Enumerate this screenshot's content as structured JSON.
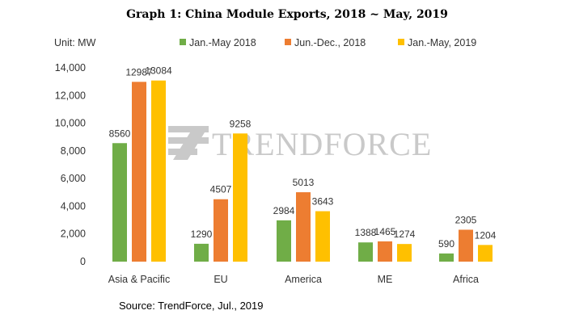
{
  "chart_data": {
    "type": "bar",
    "title": "Graph 1: China Module Exports, 2018 ~ May, 2019",
    "unit_label": "Unit:  MW",
    "categories": [
      "Asia & Pacific",
      "EU",
      "America",
      "ME",
      "Africa"
    ],
    "series": [
      {
        "name": "Jan.-May 2018",
        "color": "#70ad47",
        "values": [
          8560,
          1290,
          2984,
          1388,
          590
        ]
      },
      {
        "name": "Jun.-Dec., 2018",
        "color": "#ed7d31",
        "values": [
          12987,
          4507,
          5013,
          1465,
          2305
        ]
      },
      {
        "name": "Jan.-May, 2019",
        "color": "#ffc000",
        "values": [
          13084,
          9258,
          3643,
          1274,
          1204
        ]
      }
    ],
    "ylim": [
      0,
      14000
    ],
    "yticks": [
      "0",
      "2,000",
      "4,000",
      "6,000",
      "8,000",
      "10,000",
      "12,000",
      "14,000"
    ],
    "grid": false,
    "legend": "top",
    "source": "Source:  TrendForce,  Jul.,  2019",
    "watermark": "TRENDFORCE"
  }
}
